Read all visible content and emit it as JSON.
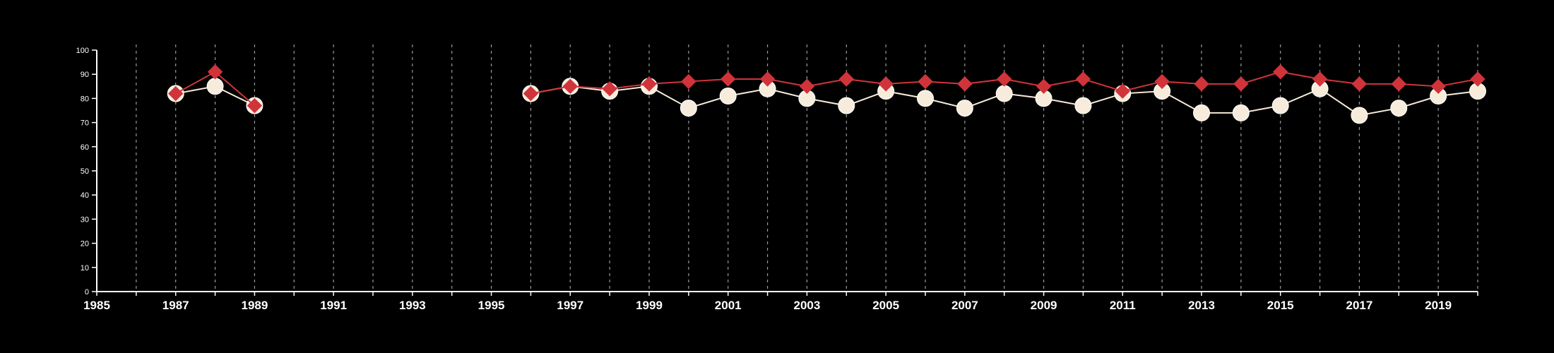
{
  "chart_data": {
    "type": "line",
    "title": "",
    "xlabel": "",
    "ylabel": "",
    "xlim": [
      1985,
      2020
    ],
    "ylim": [
      0,
      100
    ],
    "yticks": [
      0,
      10,
      20,
      30,
      40,
      50,
      60,
      70,
      80,
      90,
      100
    ],
    "xtick_labels": [
      1985,
      1987,
      1989,
      1991,
      1993,
      1995,
      1997,
      1999,
      2001,
      2003,
      2005,
      2007,
      2009,
      2011,
      2013,
      2015,
      2017,
      2019
    ],
    "grid": {
      "vertical": true,
      "horizontal": false,
      "style": "dashed"
    },
    "legend": "none",
    "colors": {
      "background": "#000000",
      "axis": "#ffffff",
      "grid": "#9a9a9a",
      "series_red": "#d0343a",
      "series_light": "#f7ecdb"
    },
    "x": [
      1987,
      1988,
      1989,
      1990,
      1991,
      1992,
      1993,
      1994,
      1995,
      1996,
      1997,
      1998,
      1999,
      2000,
      2001,
      2002,
      2003,
      2004,
      2005,
      2006,
      2007,
      2008,
      2009,
      2010,
      2011,
      2012,
      2013,
      2014,
      2015,
      2016,
      2017,
      2018,
      2019,
      2020
    ],
    "series": [
      {
        "marker": "circle",
        "color": "#f7ecdb",
        "values": [
          82,
          85,
          77,
          null,
          null,
          null,
          null,
          null,
          null,
          82,
          85,
          83,
          85,
          76,
          81,
          84,
          80,
          77,
          83,
          80,
          76,
          82,
          80,
          77,
          82,
          83,
          74,
          74,
          77,
          84,
          73,
          76,
          81,
          83
        ]
      },
      {
        "marker": "diamond",
        "color": "#d0343a",
        "values": [
          82,
          91,
          77,
          null,
          null,
          null,
          null,
          null,
          null,
          82,
          85,
          84,
          86,
          87,
          88,
          88,
          85,
          88,
          86,
          87,
          86,
          88,
          85,
          88,
          83,
          87,
          86,
          86,
          91,
          88,
          86,
          86,
          85,
          88
        ]
      }
    ]
  }
}
